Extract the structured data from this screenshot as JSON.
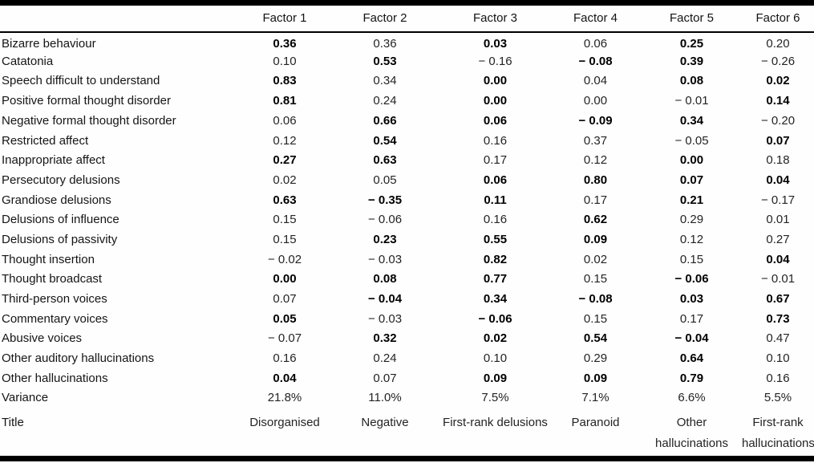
{
  "table": {
    "columns": [
      "",
      "Factor 1",
      "Factor 2",
      "Factor 3",
      "Factor 4",
      "Factor 5",
      "Factor 6"
    ],
    "rows": [
      {
        "label": "Bizarre behaviour",
        "values": [
          "0.36",
          "0.36",
          "0.03",
          "0.06",
          "0.25",
          "0.20"
        ],
        "bold": [
          1,
          0,
          1,
          0,
          1,
          0
        ]
      },
      {
        "label": "Catatonia",
        "values": [
          "0.10",
          "0.53",
          "− 0.16",
          "− 0.08",
          "0.39",
          "− 0.26"
        ],
        "bold": [
          0,
          1,
          0,
          1,
          1,
          0
        ]
      },
      {
        "label": "Speech difficult to understand",
        "values": [
          "0.83",
          "0.34",
          "0.00",
          "0.04",
          "0.08",
          "0.02"
        ],
        "bold": [
          1,
          0,
          1,
          0,
          1,
          1
        ]
      },
      {
        "label": "Positive formal thought disorder",
        "values": [
          "0.81",
          "0.24",
          "0.00",
          "0.00",
          "− 0.01",
          "0.14"
        ],
        "bold": [
          1,
          0,
          1,
          0,
          0,
          1
        ]
      },
      {
        "label": "Negative formal thought disorder",
        "values": [
          "0.06",
          "0.66",
          "0.06",
          "− 0.09",
          "0.34",
          "− 0.20"
        ],
        "bold": [
          0,
          1,
          1,
          1,
          1,
          0
        ]
      },
      {
        "label": "Restricted affect",
        "values": [
          "0.12",
          "0.54",
          "0.16",
          "0.37",
          "− 0.05",
          "0.07"
        ],
        "bold": [
          0,
          1,
          0,
          0,
          0,
          1
        ]
      },
      {
        "label": "Inappropriate affect",
        "values": [
          "0.27",
          "0.63",
          "0.17",
          "0.12",
          "0.00",
          "0.18"
        ],
        "bold": [
          1,
          1,
          0,
          0,
          1,
          0
        ]
      },
      {
        "label": "Persecutory delusions",
        "values": [
          "0.02",
          "0.05",
          "0.06",
          "0.80",
          "0.07",
          "0.04"
        ],
        "bold": [
          0,
          0,
          1,
          1,
          1,
          1
        ]
      },
      {
        "label": "Grandiose delusions",
        "values": [
          "0.63",
          "− 0.35",
          "0.11",
          "0.17",
          "0.21",
          "− 0.17"
        ],
        "bold": [
          1,
          1,
          1,
          0,
          1,
          0
        ]
      },
      {
        "label": "Delusions of influence",
        "values": [
          "0.15",
          "− 0.06",
          "0.16",
          "0.62",
          "0.29",
          "0.01"
        ],
        "bold": [
          0,
          0,
          0,
          1,
          0,
          0
        ]
      },
      {
        "label": "Delusions of passivity",
        "values": [
          "0.15",
          "0.23",
          "0.55",
          "0.09",
          "0.12",
          "0.27"
        ],
        "bold": [
          0,
          1,
          1,
          1,
          0,
          0
        ]
      },
      {
        "label": "Thought insertion",
        "values": [
          "− 0.02",
          "− 0.03",
          "0.82",
          "0.02",
          "0.15",
          "0.04"
        ],
        "bold": [
          0,
          0,
          1,
          0,
          0,
          1
        ]
      },
      {
        "label": "Thought broadcast",
        "values": [
          "0.00",
          "0.08",
          "0.77",
          "0.15",
          "− 0.06",
          "− 0.01"
        ],
        "bold": [
          1,
          1,
          1,
          0,
          1,
          0
        ]
      },
      {
        "label": "Third-person voices",
        "values": [
          "0.07",
          "− 0.04",
          "0.34",
          "− 0.08",
          "0.03",
          "0.67"
        ],
        "bold": [
          0,
          1,
          1,
          1,
          1,
          1
        ]
      },
      {
        "label": "Commentary voices",
        "values": [
          "0.05",
          "− 0.03",
          "− 0.06",
          "0.15",
          "0.17",
          "0.73"
        ],
        "bold": [
          1,
          0,
          1,
          0,
          0,
          1
        ]
      },
      {
        "label": "Abusive voices",
        "values": [
          "− 0.07",
          "0.32",
          "0.02",
          "0.54",
          "− 0.04",
          "0.47"
        ],
        "bold": [
          0,
          1,
          1,
          1,
          1,
          0
        ]
      },
      {
        "label": "Other auditory hallucinations",
        "values": [
          "0.16",
          "0.24",
          "0.10",
          "0.29",
          "0.64",
          "0.10"
        ],
        "bold": [
          0,
          0,
          0,
          0,
          1,
          0
        ]
      },
      {
        "label": "Other hallucinations",
        "values": [
          "0.04",
          "0.07",
          "0.09",
          "0.09",
          "0.79",
          "0.16"
        ],
        "bold": [
          1,
          0,
          1,
          1,
          1,
          0
        ]
      },
      {
        "label": "Variance",
        "values": [
          "21.8%",
          "11.0%",
          "7.5%",
          "7.1%",
          "6.6%",
          "5.5%"
        ],
        "bold": [
          0,
          0,
          0,
          0,
          0,
          0
        ]
      },
      {
        "label": "Title",
        "values": [
          "Disorganised",
          "Negative",
          "First-rank delusions",
          "Paranoid",
          "Other hallucinations",
          "First-rank hallucinations"
        ],
        "bold": [
          0,
          0,
          0,
          0,
          0,
          0
        ]
      }
    ]
  }
}
